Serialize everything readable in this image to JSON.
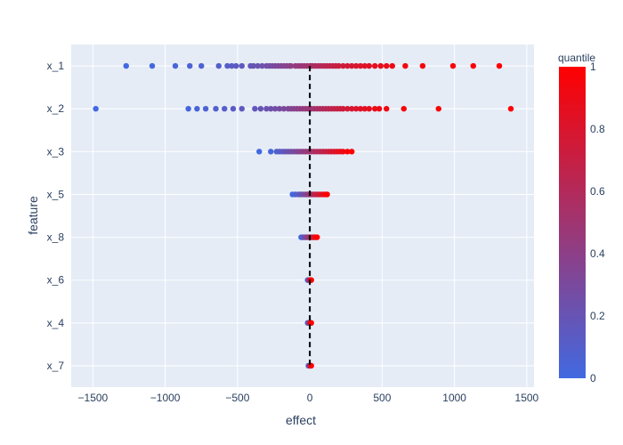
{
  "chart_data": {
    "type": "scatter",
    "title": "",
    "xlabel": "effect",
    "ylabel": "feature",
    "xlim": [
      -1650,
      1550
    ],
    "xticks": [
      -1500,
      -1000,
      -500,
      0,
      500,
      1000,
      1500
    ],
    "xtick_labels": [
      "−1500",
      "−1000",
      "−500",
      "0",
      "500",
      "1000",
      "1500"
    ],
    "categories": [
      "x_1",
      "x_2",
      "x_3",
      "x_5",
      "x_8",
      "x_6",
      "x_4",
      "x_7"
    ],
    "reference_line": {
      "x": 0,
      "style": "dashed",
      "color": "#000000"
    },
    "colorscale": {
      "title": "quantile",
      "low": "#4169e1",
      "high": "#ff0000",
      "range": [
        0,
        1
      ],
      "ticks": [
        0,
        0.2,
        0.4,
        0.6,
        0.8,
        1
      ],
      "tick_labels": [
        "0",
        "0.2",
        "0.4",
        "0.6",
        "0.8",
        "1"
      ]
    },
    "plot_background": "#e5ecf6",
    "grid": true,
    "series": [
      {
        "feature": "x_1",
        "x": [
          -1270,
          -1090,
          -930,
          -830,
          -750,
          -630,
          -570,
          -540,
          -510,
          -470,
          -410,
          -390,
          -360,
          -330,
          -300,
          -280,
          -260,
          -240,
          -220,
          -200,
          -180,
          -160,
          -140,
          -130,
          -100,
          -80,
          -60,
          -40,
          -20,
          0,
          10,
          20,
          40,
          60,
          80,
          100,
          120,
          140,
          160,
          180,
          200,
          230,
          260,
          290,
          320,
          350,
          380,
          410,
          450,
          490,
          530,
          570,
          660,
          780,
          990,
          1130,
          1310
        ]
      },
      {
        "feature": "x_2",
        "x": [
          -1480,
          -840,
          -780,
          -720,
          -650,
          -590,
          -530,
          -470,
          -380,
          -340,
          -300,
          -270,
          -240,
          -210,
          -180,
          -150,
          -130,
          -110,
          -90,
          -70,
          -50,
          -30,
          -10,
          10,
          30,
          50,
          70,
          90,
          110,
          130,
          150,
          170,
          190,
          210,
          230,
          260,
          290,
          320,
          350,
          380,
          410,
          450,
          480,
          530,
          650,
          890,
          1390
        ]
      },
      {
        "feature": "x_3",
        "x": [
          -350,
          -270,
          -230,
          -210,
          -190,
          -170,
          -150,
          -130,
          -110,
          -90,
          -70,
          -50,
          -30,
          -10,
          10,
          30,
          50,
          70,
          90,
          110,
          130,
          150,
          170,
          190,
          210,
          230,
          260,
          290
        ]
      },
      {
        "feature": "x_5",
        "x": [
          -120,
          -100,
          -80,
          -65,
          -50,
          -35,
          -20,
          -10,
          0,
          10,
          20,
          35,
          50,
          65,
          80,
          95,
          110,
          120
        ]
      },
      {
        "feature": "x_8",
        "x": [
          -60,
          -50,
          -40,
          -30,
          -20,
          -10,
          0,
          10,
          20,
          30,
          40,
          50
        ]
      },
      {
        "feature": "x_6",
        "x": [
          -15,
          -10,
          -5,
          0,
          5,
          10
        ]
      },
      {
        "feature": "x_4",
        "x": [
          -15,
          -10,
          -5,
          0,
          5,
          10
        ]
      },
      {
        "feature": "x_7",
        "x": [
          -10,
          -5,
          0,
          5,
          10
        ]
      }
    ]
  }
}
